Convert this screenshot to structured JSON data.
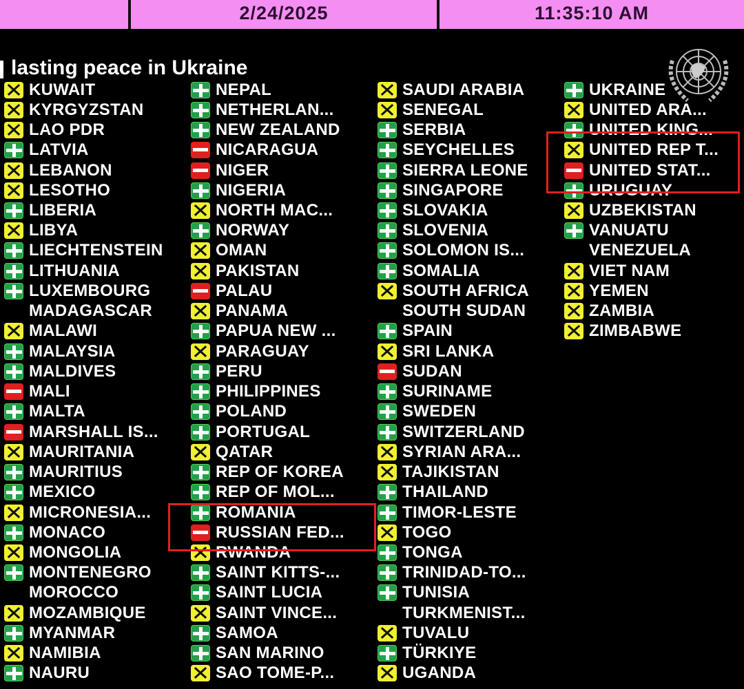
{
  "header": {
    "date": "2/24/2025",
    "time": "11:35:10 AM",
    "bar_color": "#f58ef2"
  },
  "title": "lasting peace in Ukraine",
  "legend_colors": {
    "yes": "#22a04a",
    "no": "#e02020",
    "abstain": "#f0f030"
  },
  "columns": [
    [
      {
        "name": "KUWAIT",
        "vote": "A"
      },
      {
        "name": "KYRGYZSTAN",
        "vote": "A"
      },
      {
        "name": "LAO PDR",
        "vote": "A"
      },
      {
        "name": "LATVIA",
        "vote": "Y"
      },
      {
        "name": "LEBANON",
        "vote": "A"
      },
      {
        "name": "LESOTHO",
        "vote": "A"
      },
      {
        "name": "LIBERIA",
        "vote": "Y"
      },
      {
        "name": "LIBYA",
        "vote": "A"
      },
      {
        "name": "LIECHTENSTEIN",
        "vote": "Y"
      },
      {
        "name": "LITHUANIA",
        "vote": "Y"
      },
      {
        "name": "LUXEMBOURG",
        "vote": "Y"
      },
      {
        "name": "MADAGASCAR",
        "vote": "none"
      },
      {
        "name": "MALAWI",
        "vote": "A"
      },
      {
        "name": "MALAYSIA",
        "vote": "Y"
      },
      {
        "name": "MALDIVES",
        "vote": "Y"
      },
      {
        "name": "MALI",
        "vote": "N"
      },
      {
        "name": "MALTA",
        "vote": "Y"
      },
      {
        "name": "MARSHALL IS...",
        "vote": "N"
      },
      {
        "name": "MAURITANIA",
        "vote": "A"
      },
      {
        "name": "MAURITIUS",
        "vote": "Y"
      },
      {
        "name": "MEXICO",
        "vote": "Y"
      },
      {
        "name": "MICRONESIA...",
        "vote": "A"
      },
      {
        "name": "MONACO",
        "vote": "Y"
      },
      {
        "name": "MONGOLIA",
        "vote": "A"
      },
      {
        "name": "MONTENEGRO",
        "vote": "Y"
      },
      {
        "name": "MOROCCO",
        "vote": "none"
      },
      {
        "name": "MOZAMBIQUE",
        "vote": "A"
      },
      {
        "name": "MYANMAR",
        "vote": "Y"
      },
      {
        "name": "NAMIBIA",
        "vote": "A"
      },
      {
        "name": "NAURU",
        "vote": "Y"
      }
    ],
    [
      {
        "name": "NEPAL",
        "vote": "Y"
      },
      {
        "name": "NETHERLAN...",
        "vote": "Y"
      },
      {
        "name": "NEW ZEALAND",
        "vote": "Y"
      },
      {
        "name": "NICARAGUA",
        "vote": "N"
      },
      {
        "name": "NIGER",
        "vote": "N"
      },
      {
        "name": "NIGERIA",
        "vote": "Y"
      },
      {
        "name": "NORTH MAC...",
        "vote": "A"
      },
      {
        "name": "NORWAY",
        "vote": "Y"
      },
      {
        "name": "OMAN",
        "vote": "A"
      },
      {
        "name": "PAKISTAN",
        "vote": "A"
      },
      {
        "name": "PALAU",
        "vote": "N"
      },
      {
        "name": "PANAMA",
        "vote": "A"
      },
      {
        "name": "PAPUA NEW ...",
        "vote": "Y"
      },
      {
        "name": "PARAGUAY",
        "vote": "A"
      },
      {
        "name": "PERU",
        "vote": "Y"
      },
      {
        "name": "PHILIPPINES",
        "vote": "Y"
      },
      {
        "name": "POLAND",
        "vote": "Y"
      },
      {
        "name": "PORTUGAL",
        "vote": "Y"
      },
      {
        "name": "QATAR",
        "vote": "A"
      },
      {
        "name": "REP OF KOREA",
        "vote": "Y"
      },
      {
        "name": "REP OF MOL...",
        "vote": "Y"
      },
      {
        "name": "ROMANIA",
        "vote": "Y"
      },
      {
        "name": "RUSSIAN FED...",
        "vote": "N"
      },
      {
        "name": "RWANDA",
        "vote": "A"
      },
      {
        "name": "SAINT KITTS-...",
        "vote": "Y"
      },
      {
        "name": "SAINT LUCIA",
        "vote": "Y"
      },
      {
        "name": "SAINT VINCE...",
        "vote": "A"
      },
      {
        "name": "SAMOA",
        "vote": "Y"
      },
      {
        "name": "SAN MARINO",
        "vote": "Y"
      },
      {
        "name": "SAO TOME-P...",
        "vote": "A"
      }
    ],
    [
      {
        "name": "SAUDI ARABIA",
        "vote": "A"
      },
      {
        "name": "SENEGAL",
        "vote": "A"
      },
      {
        "name": "SERBIA",
        "vote": "Y"
      },
      {
        "name": "SEYCHELLES",
        "vote": "Y"
      },
      {
        "name": "SIERRA LEONE",
        "vote": "Y"
      },
      {
        "name": "SINGAPORE",
        "vote": "Y"
      },
      {
        "name": "SLOVAKIA",
        "vote": "Y"
      },
      {
        "name": "SLOVENIA",
        "vote": "Y"
      },
      {
        "name": "SOLOMON IS...",
        "vote": "Y"
      },
      {
        "name": "SOMALIA",
        "vote": "Y"
      },
      {
        "name": "SOUTH AFRICA",
        "vote": "A"
      },
      {
        "name": "SOUTH SUDAN",
        "vote": "none"
      },
      {
        "name": "SPAIN",
        "vote": "Y"
      },
      {
        "name": "SRI LANKA",
        "vote": "A"
      },
      {
        "name": "SUDAN",
        "vote": "N"
      },
      {
        "name": "SURINAME",
        "vote": "Y"
      },
      {
        "name": "SWEDEN",
        "vote": "Y"
      },
      {
        "name": "SWITZERLAND",
        "vote": "Y"
      },
      {
        "name": "SYRIAN ARA...",
        "vote": "A"
      },
      {
        "name": "TAJIKISTAN",
        "vote": "A"
      },
      {
        "name": "THAILAND",
        "vote": "Y"
      },
      {
        "name": "TIMOR-LESTE",
        "vote": "Y"
      },
      {
        "name": "TOGO",
        "vote": "A"
      },
      {
        "name": "TONGA",
        "vote": "Y"
      },
      {
        "name": "TRINIDAD-TO...",
        "vote": "Y"
      },
      {
        "name": "TUNISIA",
        "vote": "Y"
      },
      {
        "name": "TURKMENIST...",
        "vote": "none"
      },
      {
        "name": "TUVALU",
        "vote": "A"
      },
      {
        "name": "TÜRKIYE",
        "vote": "Y"
      },
      {
        "name": "UGANDA",
        "vote": "A"
      }
    ],
    [
      {
        "name": "UKRAINE",
        "vote": "Y"
      },
      {
        "name": "UNITED ARA...",
        "vote": "A"
      },
      {
        "name": "UNITED KING...",
        "vote": "Y"
      },
      {
        "name": "UNITED REP T...",
        "vote": "A"
      },
      {
        "name": "UNITED STAT...",
        "vote": "N"
      },
      {
        "name": "URUGUAY",
        "vote": "Y"
      },
      {
        "name": "UZBEKISTAN",
        "vote": "A"
      },
      {
        "name": "VANUATU",
        "vote": "Y"
      },
      {
        "name": "VENEZUELA",
        "vote": "none"
      },
      {
        "name": "VIET NAM",
        "vote": "A"
      },
      {
        "name": "YEMEN",
        "vote": "A"
      },
      {
        "name": "ZAMBIA",
        "vote": "A"
      },
      {
        "name": "ZIMBABWE",
        "vote": "A"
      }
    ]
  ]
}
